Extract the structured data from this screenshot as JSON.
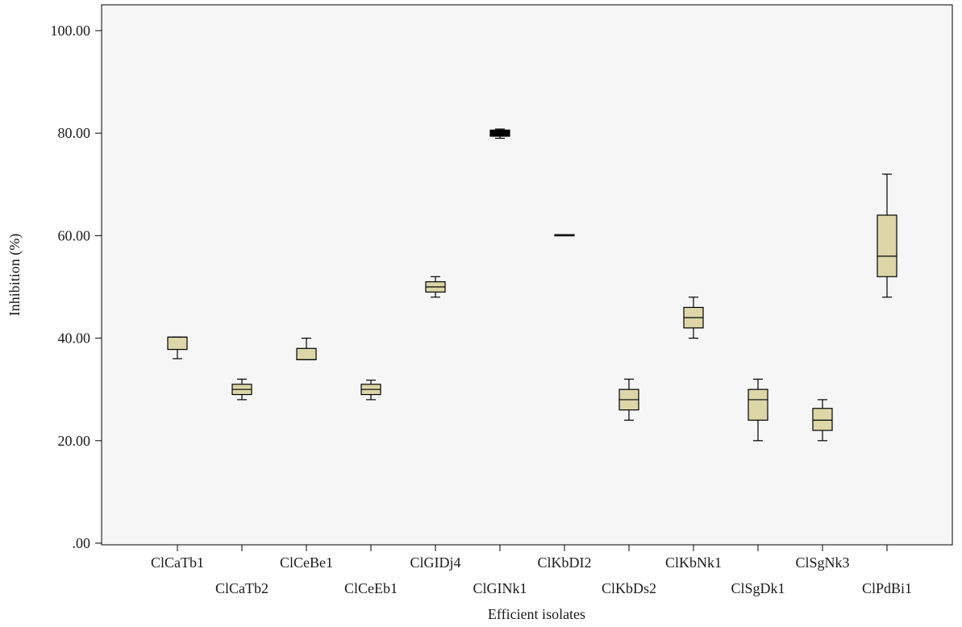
{
  "chart_data": {
    "type": "box",
    "xlabel": "Efficient isolates",
    "ylabel": "Inhibition (%)",
    "ylim": [
      0,
      100
    ],
    "yticks": [
      0,
      20,
      40,
      60,
      80,
      100
    ],
    "ytick_labels": [
      ".00",
      "20.00",
      "40.00",
      "60.00",
      "80.00",
      "100.00"
    ],
    "grid": false,
    "background_color": "#f6f6f6",
    "box_color": "#dcd6a8",
    "categories": [
      "ClCaTb1",
      "ClCaTb2",
      "ClCeBe1",
      "ClCeEb1",
      "ClGIDj4",
      "ClGINk1",
      "ClKbDI2",
      "ClKbDs2",
      "ClKbNk1",
      "ClSgDk1",
      "ClSgNk3",
      "ClPdBi1"
    ],
    "boxes": [
      {
        "category": "ClCaTb1",
        "min": 36.0,
        "q1": 37.8,
        "median": 40.2,
        "q3": 40.2,
        "max": 40.2
      },
      {
        "category": "ClCaTb2",
        "min": 28.0,
        "q1": 29.0,
        "median": 30.0,
        "q3": 31.0,
        "max": 32.0
      },
      {
        "category": "ClCeBe1",
        "min": 35.8,
        "q1": 35.8,
        "median": 35.8,
        "q3": 38.0,
        "max": 40.0
      },
      {
        "category": "ClCeEb1",
        "min": 28.0,
        "q1": 29.0,
        "median": 30.0,
        "q3": 31.0,
        "max": 31.8
      },
      {
        "category": "ClGIDj4",
        "min": 48.0,
        "q1": 49.0,
        "median": 50.0,
        "q3": 51.0,
        "max": 52.0
      },
      {
        "category": "ClGINk1",
        "min": 79.0,
        "q1": 79.4,
        "median": 80.0,
        "q3": 80.6,
        "max": 80.8,
        "fill": "#000000"
      },
      {
        "category": "ClKbDI2",
        "min": 60.0,
        "q1": 60.0,
        "median": 60.2,
        "q3": 60.2,
        "max": 60.2
      },
      {
        "category": "ClKbDs2",
        "min": 24.0,
        "q1": 26.0,
        "median": 28.0,
        "q3": 30.0,
        "max": 32.0
      },
      {
        "category": "ClKbNk1",
        "min": 40.0,
        "q1": 42.0,
        "median": 44.0,
        "q3": 46.0,
        "max": 48.0
      },
      {
        "category": "ClSgDk1",
        "min": 20.0,
        "q1": 24.0,
        "median": 28.0,
        "q3": 30.0,
        "max": 32.0
      },
      {
        "category": "ClSgNk3",
        "min": 20.0,
        "q1": 22.0,
        "median": 24.0,
        "q3": 26.3,
        "max": 28.0
      },
      {
        "category": "ClPdBi1",
        "min": 48.0,
        "q1": 52.0,
        "median": 56.0,
        "q3": 64.0,
        "max": 72.0
      }
    ]
  }
}
